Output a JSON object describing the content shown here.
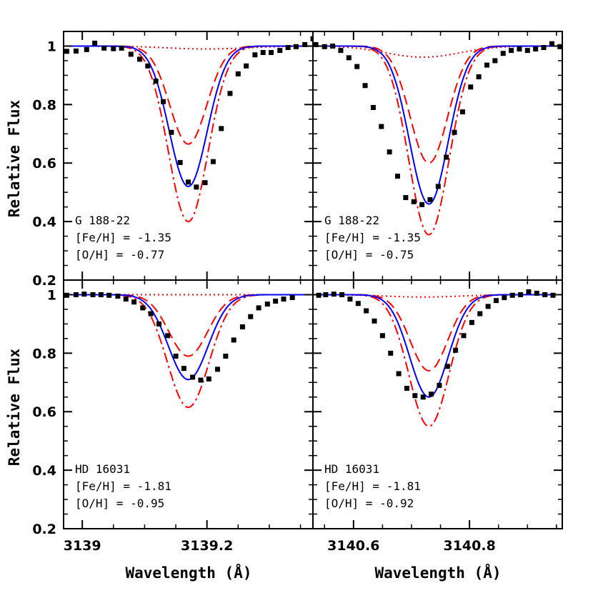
{
  "chart_data": {
    "type": "line",
    "panel_grid": {
      "rows": 2,
      "cols": 2
    },
    "ylabel": "Relative Flux",
    "xlabel": "Wavelength (Å)",
    "ylim": [
      0.2,
      1.05
    ],
    "y_ticks": [
      0.2,
      0.4,
      0.6,
      0.8,
      1.0
    ],
    "y_tick_labels": [
      "0.2",
      "0.4",
      "0.6",
      "0.8",
      "1"
    ],
    "series_styles": {
      "observed": {
        "marker": "square",
        "color": "#000000"
      },
      "best_fit": {
        "line": "solid",
        "color": "#0000ff"
      },
      "oxygen_lower": {
        "line": "dashed",
        "color": "#ff0000"
      },
      "oxygen_higher": {
        "line": "dash-dot",
        "color": "#ff0000"
      },
      "no_oxygen": {
        "line": "dotted",
        "color": "#ff0000"
      }
    },
    "panels": [
      {
        "row": 0,
        "col": 0,
        "xlim": [
          3138.97,
          3139.37
        ],
        "x_ticks": [
          3139.0,
          3139.2
        ],
        "x_tick_labels": [
          "3139",
          "3139.2"
        ],
        "annotations": [
          "G 188-22",
          "[Fe/H] = -1.35",
          "[O/H] = -0.77"
        ],
        "center": 3139.17,
        "depth_fit": 0.48,
        "depth_dashed": 0.335,
        "depth_dashdot": 0.6,
        "width": 0.043,
        "dotted_dip": 0.01,
        "dotted_center": 3139.2,
        "observed": {
          "x": [
            3138.975,
            3138.99,
            3139.007,
            3139.02,
            3139.035,
            3139.05,
            3139.063,
            3139.078,
            3139.092,
            3139.105,
            3139.118,
            3139.13,
            3139.143,
            3139.157,
            3139.17,
            3139.183,
            3139.197,
            3139.21,
            3139.223,
            3139.237,
            3139.25,
            3139.263,
            3139.277,
            3139.29,
            3139.303,
            3139.317,
            3139.33,
            3139.343,
            3139.357,
            3139.37
          ],
          "y": [
            0.982,
            0.983,
            0.988,
            1.01,
            0.993,
            0.991,
            0.993,
            0.972,
            0.955,
            0.932,
            0.88,
            0.81,
            0.705,
            0.602,
            0.535,
            0.518,
            0.533,
            0.605,
            0.718,
            0.838,
            0.905,
            0.932,
            0.97,
            0.978,
            0.978,
            0.985,
            0.995,
            0.998,
            1.005,
            1.025
          ]
        }
      },
      {
        "row": 0,
        "col": 1,
        "xlim": [
          3140.53,
          3140.96
        ],
        "x_ticks": [
          3140.6,
          3140.8
        ],
        "x_tick_labels": [
          "3140.6",
          "3140.8"
        ],
        "annotations": [
          "G 188-22",
          "[Fe/H] = -1.35",
          "[O/H] = -0.75"
        ],
        "center": 3140.73,
        "depth_fit": 0.54,
        "depth_dashed": 0.4,
        "depth_dashdot": 0.645,
        "width": 0.047,
        "dotted_dip": 0.038,
        "dotted_center": 3140.72,
        "observed": {
          "x": [
            3140.535,
            3140.55,
            3140.564,
            3140.578,
            3140.592,
            3140.606,
            3140.62,
            3140.634,
            3140.648,
            3140.662,
            3140.676,
            3140.69,
            3140.704,
            3140.718,
            3140.732,
            3140.746,
            3140.76,
            3140.774,
            3140.788,
            3140.802,
            3140.816,
            3140.83,
            3140.844,
            3140.858,
            3140.872,
            3140.886,
            3140.9,
            3140.914,
            3140.928,
            3140.942,
            3140.956
          ],
          "y": [
            1.005,
            0.998,
            1.0,
            0.985,
            0.96,
            0.93,
            0.865,
            0.79,
            0.725,
            0.638,
            0.555,
            0.482,
            0.468,
            0.458,
            0.475,
            0.52,
            0.62,
            0.705,
            0.775,
            0.86,
            0.895,
            0.935,
            0.95,
            0.975,
            0.985,
            0.99,
            0.985,
            0.99,
            0.995,
            1.008,
            0.998
          ]
        }
      },
      {
        "row": 1,
        "col": 0,
        "xlim": [
          3138.97,
          3139.37
        ],
        "x_ticks": [
          3139.0,
          3139.2
        ],
        "x_tick_labels": [
          "3139",
          "3139.2"
        ],
        "annotations": [
          "HD 16031",
          "[Fe/H] = -1.81",
          "[O/H] = -0.95"
        ],
        "center": 3139.17,
        "depth_fit": 0.29,
        "depth_dashed": 0.21,
        "depth_dashdot": 0.385,
        "width": 0.045,
        "dotted_dip": 0.0,
        "dotted_center": 3139.17,
        "observed": {
          "x": [
            3138.975,
            3138.99,
            3139.003,
            3139.017,
            3139.03,
            3139.043,
            3139.057,
            3139.07,
            3139.083,
            3139.097,
            3139.11,
            3139.123,
            3139.137,
            3139.15,
            3139.163,
            3139.177,
            3139.19,
            3139.203,
            3139.217,
            3139.23,
            3139.243,
            3139.257,
            3139.27,
            3139.283,
            3139.297,
            3139.31,
            3139.323,
            3139.337
          ],
          "y": [
            0.998,
            1.0,
            1.002,
            1.0,
            1.0,
            0.998,
            0.995,
            0.985,
            0.975,
            0.955,
            0.935,
            0.9,
            0.86,
            0.79,
            0.748,
            0.718,
            0.708,
            0.712,
            0.745,
            0.79,
            0.845,
            0.89,
            0.925,
            0.955,
            0.968,
            0.978,
            0.985,
            0.99
          ]
        }
      },
      {
        "row": 1,
        "col": 1,
        "xlim": [
          3140.53,
          3140.96
        ],
        "x_ticks": [
          3140.6,
          3140.8
        ],
        "x_tick_labels": [
          "3140.6",
          "3140.8"
        ],
        "annotations": [
          "HD 16031",
          "[Fe/H] = -1.81",
          "[O/H] = -0.92"
        ],
        "center": 3140.73,
        "depth_fit": 0.35,
        "depth_dashed": 0.26,
        "depth_dashdot": 0.45,
        "width": 0.047,
        "dotted_dip": 0.008,
        "dotted_center": 3140.72,
        "observed": {
          "x": [
            3140.54,
            3140.552,
            3140.566,
            3140.58,
            3140.594,
            3140.608,
            3140.622,
            3140.636,
            3140.65,
            3140.664,
            3140.678,
            3140.692,
            3140.706,
            3140.72,
            3140.734,
            3140.748,
            3140.762,
            3140.776,
            3140.79,
            3140.804,
            3140.818,
            3140.832,
            3140.846,
            3140.86,
            3140.874,
            3140.888,
            3140.902,
            3140.916,
            3140.93,
            3140.944
          ],
          "y": [
            0.998,
            1.0,
            1.002,
            1.0,
            0.985,
            0.97,
            0.945,
            0.91,
            0.86,
            0.8,
            0.73,
            0.68,
            0.655,
            0.65,
            0.66,
            0.69,
            0.755,
            0.81,
            0.86,
            0.905,
            0.935,
            0.96,
            0.98,
            0.99,
            0.998,
            1.0,
            1.01,
            1.005,
            1.0,
            0.998
          ]
        }
      }
    ]
  }
}
